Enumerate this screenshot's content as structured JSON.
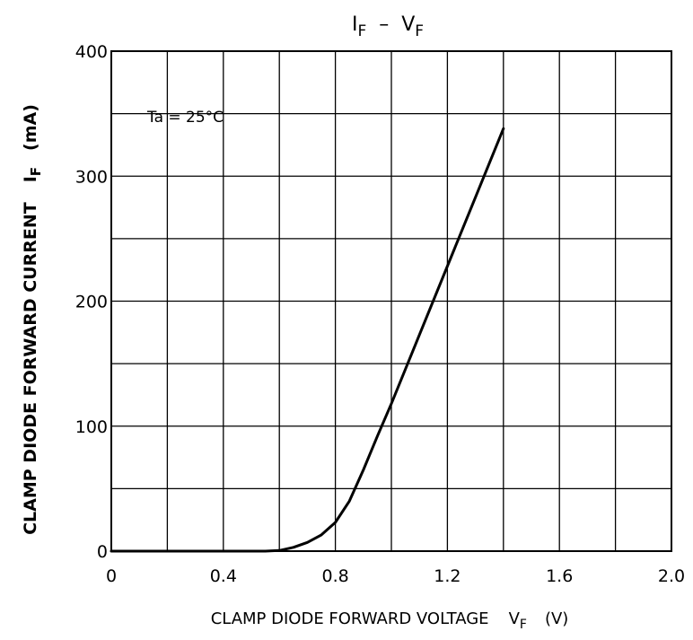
{
  "chart_data": {
    "type": "line",
    "title": {
      "main": "I",
      "main_sub": "F",
      "sep": "–",
      "second": "V",
      "second_sub": "F"
    },
    "annotation": "Ta = 25°C",
    "xlabel": {
      "text": "CLAMP DIODE FORWARD VOLTAGE",
      "sym": "V",
      "sym_sub": "F",
      "unit": "(V)"
    },
    "ylabel": {
      "text": "CLAMP DIODE FORWARD CURRENT",
      "sym": "I",
      "sym_sub": "F",
      "unit": "(mA)"
    },
    "xlim": [
      0,
      2.0
    ],
    "ylim": [
      0,
      400
    ],
    "x_ticks": [
      "0",
      "0.4",
      "0.8",
      "1.2",
      "1.6",
      "2.0"
    ],
    "y_ticks": [
      "0",
      "100",
      "200",
      "300",
      "400"
    ],
    "grid": true,
    "series": [
      {
        "x": [
          0,
          0.2,
          0.4,
          0.55,
          0.6,
          0.65,
          0.7,
          0.75,
          0.8,
          0.85,
          0.9,
          0.95,
          1.0,
          1.1,
          1.2,
          1.3,
          1.4
        ],
        "y": [
          0,
          0,
          0,
          0,
          0.5,
          3,
          7,
          13,
          23,
          40,
          65,
          92,
          118,
          173,
          228,
          283,
          338
        ]
      }
    ]
  }
}
